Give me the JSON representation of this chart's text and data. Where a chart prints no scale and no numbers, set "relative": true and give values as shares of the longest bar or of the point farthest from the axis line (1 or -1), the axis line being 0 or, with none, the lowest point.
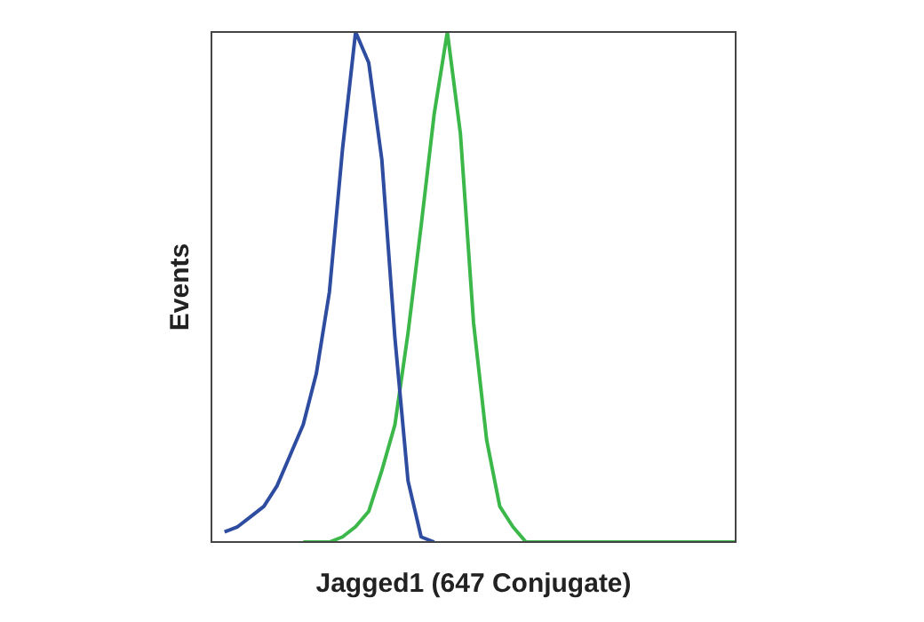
{
  "chart_data": {
    "type": "line",
    "relative": true,
    "xlabel": "Jagged1 (647 Conjugate)",
    "ylabel": "Events",
    "categories": [
      null,
      null,
      null,
      null,
      null,
      null,
      null,
      null,
      null,
      null,
      null,
      null,
      null,
      null,
      null,
      null,
      null,
      null,
      null,
      null,
      null,
      null,
      null,
      null,
      null,
      null,
      null,
      null,
      null,
      null,
      null,
      null,
      null,
      null,
      null,
      null,
      null,
      null,
      null,
      null,
      null
    ],
    "grid": false,
    "legend": false,
    "marker": "none",
    "line_style": "solid",
    "series": [
      {
        "color": "#2e4da0",
        "values": [
          null,
          0.02,
          0.03,
          0.05,
          0.07,
          0.11,
          0.17,
          0.23,
          0.33,
          0.49,
          0.77,
          1,
          0.94,
          0.75,
          0.4,
          0.12,
          0.01,
          0,
          null,
          null,
          null,
          null,
          null,
          null,
          null,
          null,
          null,
          null,
          null,
          null,
          null,
          null,
          null,
          null,
          null,
          null,
          null,
          null,
          null,
          null,
          null
        ]
      },
      {
        "color": "#3cb84a",
        "values": [
          null,
          null,
          null,
          null,
          null,
          null,
          null,
          0,
          0,
          0,
          0.01,
          0.03,
          0.06,
          0.14,
          0.23,
          0.41,
          0.62,
          0.84,
          1,
          0.8,
          0.43,
          0.2,
          0.07,
          0.03,
          0,
          0,
          0,
          0,
          0,
          0,
          0,
          0,
          0,
          0,
          0,
          0,
          0,
          0,
          0,
          0,
          0
        ]
      }
    ]
  }
}
